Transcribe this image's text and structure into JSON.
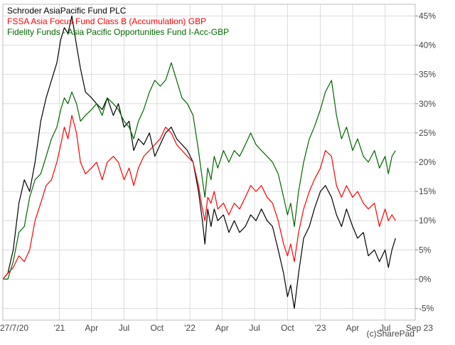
{
  "chart_data": {
    "type": "line",
    "title": "",
    "xlabel": "",
    "ylabel": "",
    "y_unit": "%",
    "ylim": [
      -7,
      47
    ],
    "y_ticks": [
      -5,
      0,
      5,
      10,
      15,
      20,
      25,
      30,
      35,
      40,
      45
    ],
    "y_tick_labels": [
      "-5%",
      "0%",
      "5%",
      "10%",
      "15%",
      "20%",
      "25%",
      "30%",
      "35%",
      "40%",
      "45%"
    ],
    "x_range": [
      "2020-07-27",
      "2023-09-23"
    ],
    "x_ticks": [
      {
        "date": "2020-07-27",
        "label": "27/7/20"
      },
      {
        "date": "2021-01-01",
        "label": "'21"
      },
      {
        "date": "2021-04-01",
        "label": "Apr"
      },
      {
        "date": "2021-07-01",
        "label": "Jul"
      },
      {
        "date": "2021-10-01",
        "label": "Oct"
      },
      {
        "date": "2022-01-01",
        "label": "'22"
      },
      {
        "date": "2022-04-01",
        "label": "Apr"
      },
      {
        "date": "2022-07-01",
        "label": "Jul"
      },
      {
        "date": "2022-10-01",
        "label": "Oct"
      },
      {
        "date": "2023-01-01",
        "label": "'23"
      },
      {
        "date": "2023-04-01",
        "label": "Apr"
      },
      {
        "date": "2023-07-01",
        "label": "Jul"
      },
      {
        "date": "2023-09-23",
        "label": "Sep 23"
      }
    ],
    "grid": true,
    "legend_position": "top-left",
    "watermark": "(c)SharePad",
    "series": [
      {
        "name": "Schroder AsiaPacific Fund PLC",
        "color": "#000000",
        "points": [
          [
            "2020-07-27",
            0
          ],
          [
            "2020-08-10",
            1
          ],
          [
            "2020-08-25",
            5
          ],
          [
            "2020-09-10",
            13
          ],
          [
            "2020-09-25",
            17
          ],
          [
            "2020-10-10",
            15
          ],
          [
            "2020-10-25",
            20
          ],
          [
            "2020-11-10",
            27
          ],
          [
            "2020-11-25",
            31
          ],
          [
            "2020-12-10",
            34
          ],
          [
            "2020-12-25",
            37
          ],
          [
            "2021-01-05",
            41
          ],
          [
            "2021-01-15",
            43
          ],
          [
            "2021-01-25",
            42
          ],
          [
            "2021-02-05",
            45
          ],
          [
            "2021-02-18",
            40
          ],
          [
            "2021-03-01",
            36
          ],
          [
            "2021-03-15",
            32
          ],
          [
            "2021-04-01",
            31
          ],
          [
            "2021-04-15",
            30
          ],
          [
            "2021-05-01",
            29
          ],
          [
            "2021-05-15",
            31
          ],
          [
            "2021-06-01",
            28
          ],
          [
            "2021-06-15",
            30
          ],
          [
            "2021-07-01",
            26
          ],
          [
            "2021-07-15",
            27
          ],
          [
            "2021-07-28",
            22
          ],
          [
            "2021-08-10",
            24
          ],
          [
            "2021-08-25",
            23
          ],
          [
            "2021-09-10",
            25
          ],
          [
            "2021-09-25",
            21
          ],
          [
            "2021-10-10",
            23
          ],
          [
            "2021-10-25",
            25
          ],
          [
            "2021-11-10",
            26
          ],
          [
            "2021-11-25",
            24
          ],
          [
            "2021-12-10",
            23
          ],
          [
            "2021-12-25",
            22
          ],
          [
            "2022-01-10",
            20
          ],
          [
            "2022-01-25",
            15
          ],
          [
            "2022-02-05",
            10
          ],
          [
            "2022-02-12",
            6
          ],
          [
            "2022-02-20",
            12
          ],
          [
            "2022-03-01",
            9
          ],
          [
            "2022-03-10",
            12
          ],
          [
            "2022-03-20",
            10
          ],
          [
            "2022-04-05",
            11
          ],
          [
            "2022-04-20",
            8
          ],
          [
            "2022-05-05",
            10
          ],
          [
            "2022-05-20",
            8
          ],
          [
            "2022-06-05",
            9
          ],
          [
            "2022-06-20",
            11
          ],
          [
            "2022-07-05",
            10
          ],
          [
            "2022-07-20",
            12
          ],
          [
            "2022-08-05",
            10
          ],
          [
            "2022-08-20",
            9
          ],
          [
            "2022-09-05",
            5
          ],
          [
            "2022-09-20",
            1
          ],
          [
            "2022-10-01",
            -3
          ],
          [
            "2022-10-10",
            -1
          ],
          [
            "2022-10-20",
            -5
          ],
          [
            "2022-11-01",
            1
          ],
          [
            "2022-11-15",
            7
          ],
          [
            "2022-12-01",
            9
          ],
          [
            "2022-12-15",
            12
          ],
          [
            "2023-01-01",
            15
          ],
          [
            "2023-01-15",
            16
          ],
          [
            "2023-02-01",
            14
          ],
          [
            "2023-02-15",
            11
          ],
          [
            "2023-03-01",
            9
          ],
          [
            "2023-03-15",
            12
          ],
          [
            "2023-04-01",
            9
          ],
          [
            "2023-04-15",
            7
          ],
          [
            "2023-05-01",
            8
          ],
          [
            "2023-05-15",
            4
          ],
          [
            "2023-06-01",
            5
          ],
          [
            "2023-06-15",
            3
          ],
          [
            "2023-07-01",
            5
          ],
          [
            "2023-07-10",
            2
          ],
          [
            "2023-07-20",
            5
          ],
          [
            "2023-07-30",
            7
          ]
        ]
      },
      {
        "name": "FSSA Asia Focus Fund Class B (Accumulation) GBP",
        "color": "#ff0000",
        "points": [
          [
            "2020-07-27",
            0
          ],
          [
            "2020-08-10",
            1
          ],
          [
            "2020-08-25",
            2
          ],
          [
            "2020-09-10",
            4
          ],
          [
            "2020-09-25",
            3
          ],
          [
            "2020-10-10",
            5
          ],
          [
            "2020-10-25",
            10
          ],
          [
            "2020-11-10",
            13
          ],
          [
            "2020-11-25",
            16
          ],
          [
            "2020-12-10",
            17
          ],
          [
            "2020-12-25",
            20
          ],
          [
            "2021-01-05",
            23
          ],
          [
            "2021-01-15",
            26
          ],
          [
            "2021-01-25",
            24
          ],
          [
            "2021-02-05",
            28
          ],
          [
            "2021-02-18",
            25
          ],
          [
            "2021-03-01",
            20
          ],
          [
            "2021-03-15",
            18
          ],
          [
            "2021-04-01",
            19
          ],
          [
            "2021-04-15",
            20
          ],
          [
            "2021-05-01",
            17
          ],
          [
            "2021-05-15",
            20
          ],
          [
            "2021-06-01",
            21
          ],
          [
            "2021-06-15",
            20
          ],
          [
            "2021-07-01",
            17
          ],
          [
            "2021-07-15",
            19
          ],
          [
            "2021-07-28",
            16
          ],
          [
            "2021-08-10",
            19
          ],
          [
            "2021-08-25",
            21
          ],
          [
            "2021-09-10",
            22
          ],
          [
            "2021-09-25",
            23
          ],
          [
            "2021-10-10",
            24
          ],
          [
            "2021-10-25",
            26
          ],
          [
            "2021-11-10",
            25
          ],
          [
            "2021-11-25",
            23
          ],
          [
            "2021-12-10",
            22
          ],
          [
            "2021-12-25",
            21
          ],
          [
            "2022-01-10",
            20
          ],
          [
            "2022-01-25",
            16
          ],
          [
            "2022-02-05",
            12
          ],
          [
            "2022-02-12",
            10
          ],
          [
            "2022-02-20",
            14
          ],
          [
            "2022-03-01",
            13
          ],
          [
            "2022-03-10",
            15
          ],
          [
            "2022-03-20",
            12
          ],
          [
            "2022-04-05",
            13
          ],
          [
            "2022-04-20",
            11
          ],
          [
            "2022-05-05",
            13
          ],
          [
            "2022-05-20",
            12
          ],
          [
            "2022-06-05",
            14
          ],
          [
            "2022-06-20",
            16
          ],
          [
            "2022-07-05",
            15
          ],
          [
            "2022-07-20",
            16
          ],
          [
            "2022-08-05",
            14
          ],
          [
            "2022-08-20",
            13
          ],
          [
            "2022-09-05",
            10
          ],
          [
            "2022-09-20",
            6
          ],
          [
            "2022-10-01",
            4
          ],
          [
            "2022-10-10",
            6
          ],
          [
            "2022-10-20",
            3
          ],
          [
            "2022-11-01",
            8
          ],
          [
            "2022-11-15",
            12
          ],
          [
            "2022-12-01",
            15
          ],
          [
            "2022-12-15",
            17
          ],
          [
            "2023-01-01",
            19
          ],
          [
            "2023-01-15",
            22
          ],
          [
            "2023-02-01",
            21
          ],
          [
            "2023-02-15",
            16
          ],
          [
            "2023-03-01",
            14
          ],
          [
            "2023-03-15",
            16
          ],
          [
            "2023-04-01",
            14
          ],
          [
            "2023-04-15",
            15
          ],
          [
            "2023-05-01",
            13
          ],
          [
            "2023-05-15",
            12
          ],
          [
            "2023-06-01",
            13
          ],
          [
            "2023-06-15",
            9
          ],
          [
            "2023-07-01",
            12
          ],
          [
            "2023-07-10",
            10
          ],
          [
            "2023-07-20",
            11
          ],
          [
            "2023-07-30",
            10
          ]
        ]
      },
      {
        "name": "Fidelity Funds - Asia Pacific Opportunities Fund I-Acc-GBP",
        "color": "#006600",
        "points": [
          [
            "2020-07-27",
            0
          ],
          [
            "2020-08-10",
            0
          ],
          [
            "2020-08-25",
            3
          ],
          [
            "2020-09-10",
            8
          ],
          [
            "2020-09-25",
            9
          ],
          [
            "2020-10-10",
            14
          ],
          [
            "2020-10-25",
            17
          ],
          [
            "2020-11-10",
            18
          ],
          [
            "2020-11-25",
            21
          ],
          [
            "2020-12-10",
            24
          ],
          [
            "2020-12-25",
            26
          ],
          [
            "2021-01-05",
            29
          ],
          [
            "2021-01-15",
            31
          ],
          [
            "2021-01-25",
            30
          ],
          [
            "2021-02-05",
            32
          ],
          [
            "2021-02-18",
            30
          ],
          [
            "2021-03-01",
            27
          ],
          [
            "2021-03-15",
            28
          ],
          [
            "2021-04-01",
            29
          ],
          [
            "2021-04-15",
            30
          ],
          [
            "2021-05-01",
            28
          ],
          [
            "2021-05-15",
            31
          ],
          [
            "2021-06-01",
            30
          ],
          [
            "2021-06-15",
            29
          ],
          [
            "2021-07-01",
            27
          ],
          [
            "2021-07-15",
            26
          ],
          [
            "2021-07-28",
            24
          ],
          [
            "2021-08-10",
            27
          ],
          [
            "2021-08-25",
            29
          ],
          [
            "2021-09-10",
            32
          ],
          [
            "2021-09-25",
            34
          ],
          [
            "2021-10-10",
            33
          ],
          [
            "2021-10-25",
            34
          ],
          [
            "2021-11-10",
            37
          ],
          [
            "2021-11-25",
            34
          ],
          [
            "2021-12-10",
            31
          ],
          [
            "2021-12-25",
            30
          ],
          [
            "2022-01-10",
            28
          ],
          [
            "2022-01-25",
            22
          ],
          [
            "2022-02-05",
            17
          ],
          [
            "2022-02-12",
            14
          ],
          [
            "2022-02-20",
            19
          ],
          [
            "2022-03-01",
            17
          ],
          [
            "2022-03-10",
            21
          ],
          [
            "2022-03-20",
            19
          ],
          [
            "2022-04-05",
            22
          ],
          [
            "2022-04-20",
            20
          ],
          [
            "2022-05-05",
            22
          ],
          [
            "2022-05-20",
            21
          ],
          [
            "2022-06-05",
            23
          ],
          [
            "2022-06-20",
            25
          ],
          [
            "2022-07-05",
            23
          ],
          [
            "2022-07-20",
            22
          ],
          [
            "2022-08-05",
            21
          ],
          [
            "2022-08-20",
            20
          ],
          [
            "2022-09-05",
            18
          ],
          [
            "2022-09-20",
            14
          ],
          [
            "2022-10-01",
            11
          ],
          [
            "2022-10-10",
            13
          ],
          [
            "2022-10-20",
            9
          ],
          [
            "2022-11-01",
            15
          ],
          [
            "2022-11-15",
            20
          ],
          [
            "2022-12-01",
            24
          ],
          [
            "2022-12-15",
            26
          ],
          [
            "2023-01-01",
            29
          ],
          [
            "2023-01-15",
            32
          ],
          [
            "2023-02-01",
            34
          ],
          [
            "2023-02-15",
            28
          ],
          [
            "2023-03-01",
            24
          ],
          [
            "2023-03-15",
            26
          ],
          [
            "2023-04-01",
            22
          ],
          [
            "2023-04-15",
            24
          ],
          [
            "2023-05-01",
            21
          ],
          [
            "2023-05-15",
            20
          ],
          [
            "2023-06-01",
            22
          ],
          [
            "2023-06-15",
            19
          ],
          [
            "2023-07-01",
            21
          ],
          [
            "2023-07-10",
            18
          ],
          [
            "2023-07-20",
            21
          ],
          [
            "2023-07-30",
            22
          ]
        ]
      }
    ]
  }
}
